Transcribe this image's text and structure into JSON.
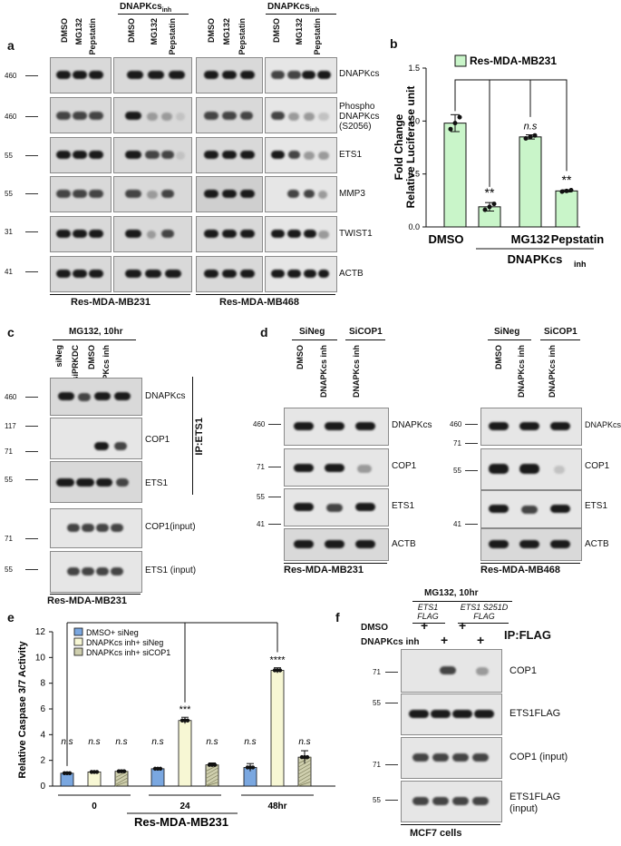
{
  "panel_a": {
    "letter": "a",
    "inhibitor_header": "DNAPKcs",
    "inhibitor_sub": "inh",
    "lanes": [
      "DMSO",
      "MG132",
      "Pepstatin"
    ],
    "proteins": [
      "DNAPKcs",
      "Phospho DNAPKcs (S2056)",
      "ETS1",
      "MMP3",
      "TWIST1",
      "ACTB"
    ],
    "mw": [
      "460",
      "460",
      "55",
      "55",
      "31",
      "41"
    ],
    "cell_lines": [
      "Res-MDA-MB231",
      "Res-MDA-MB468"
    ]
  },
  "panel_b": {
    "letter": "b",
    "legend": "Res-MDA-MB231",
    "ylabel_line1": "Fold Change",
    "ylabel_line2": "Relative Luciferase unit",
    "group_label": "DNAPKcs",
    "group_sub": "inh",
    "chart_data": {
      "type": "bar",
      "categories": [
        "DMSO",
        "",
        "MG132",
        "Pepstatin"
      ],
      "values": [
        0.98,
        0.19,
        0.85,
        0.34
      ],
      "errors": [
        0.08,
        0.04,
        0.02,
        0.01
      ],
      "significance": [
        "",
        "**",
        "n.s",
        "**"
      ],
      "yticks": [
        "0.0",
        "0.5",
        "1.0",
        "1.5"
      ],
      "ylim": [
        0,
        1.5
      ],
      "color": "#c9f5c9"
    }
  },
  "panel_c": {
    "letter": "c",
    "treatment": "MG132, 10hr",
    "lanes": [
      "siNeg",
      "siPRKDC",
      "DMSO",
      "DNAPKcs inh"
    ],
    "proteins": [
      "DNAPKcs",
      "COP1",
      "ETS1",
      "COP1(input)",
      "ETS1 (input)"
    ],
    "mw": [
      "460",
      "117",
      "71",
      "55",
      "71",
      "55"
    ],
    "ip_label": "IP:ETS1",
    "cell_line": "Res-MDA-MB231"
  },
  "panel_d": {
    "letter": "d",
    "groups": [
      "SiNeg",
      "SiCOP1"
    ],
    "lanes": [
      "DMSO",
      "DNAPKcs inh",
      "DNAPKcs inh"
    ],
    "proteins": [
      "DNAPKcs",
      "COP1",
      "ETS1",
      "ACTB"
    ],
    "mw": [
      "460",
      "71",
      "55",
      "41"
    ],
    "cell_lines": [
      "Res-MDA-MB231",
      "Res-MDA-MB468"
    ]
  },
  "panel_e": {
    "letter": "e",
    "ylabel": "Relative Caspase 3/7 Activity",
    "xlabel": "Res-MDA-MB231",
    "chart_data": {
      "type": "bar",
      "categories": [
        "0",
        "24",
        "48hr"
      ],
      "series": [
        {
          "name": "DMSO+ siNeg",
          "values": [
            1.0,
            1.35,
            1.45
          ],
          "color": "#7aa7e0"
        },
        {
          "name": "DNAPKcs inh+ siNeg",
          "values": [
            1.1,
            5.1,
            9.0
          ],
          "color": "#f7f7d4"
        },
        {
          "name": "DNAPKcs inh+ siCOP1",
          "values": [
            1.15,
            1.65,
            2.25
          ],
          "color": "#cfcfae"
        }
      ],
      "errors": [
        [
          0.1,
          0.08,
          0.3
        ],
        [
          0.05,
          0.25,
          0.2
        ],
        [
          0.1,
          0.15,
          0.5
        ]
      ],
      "significance": [
        [
          "n.s",
          "n.s",
          "n.s"
        ],
        [
          "n.s",
          "***",
          "****"
        ],
        [
          "n.s",
          "n.s",
          "n.s"
        ]
      ],
      "yticks": [
        "0",
        "2",
        "4",
        "6",
        "8",
        "10",
        "12"
      ],
      "ylim": [
        0,
        12
      ]
    }
  },
  "panel_f": {
    "letter": "f",
    "treatment": "MG132, 10hr",
    "constructs": [
      "ETS1 FLAG",
      "ETS1 S251D FLAG"
    ],
    "row_labels": [
      "DMSO",
      "DNAPKcs inh"
    ],
    "plus": "+",
    "ip_label": "IP:FLAG",
    "proteins": [
      "COP1",
      "ETS1FLAG",
      "COP1 (input)",
      "ETS1FLAG (input)"
    ],
    "mw": [
      "71",
      "55",
      "71",
      "55"
    ],
    "cell_line": "MCF7 cells"
  }
}
